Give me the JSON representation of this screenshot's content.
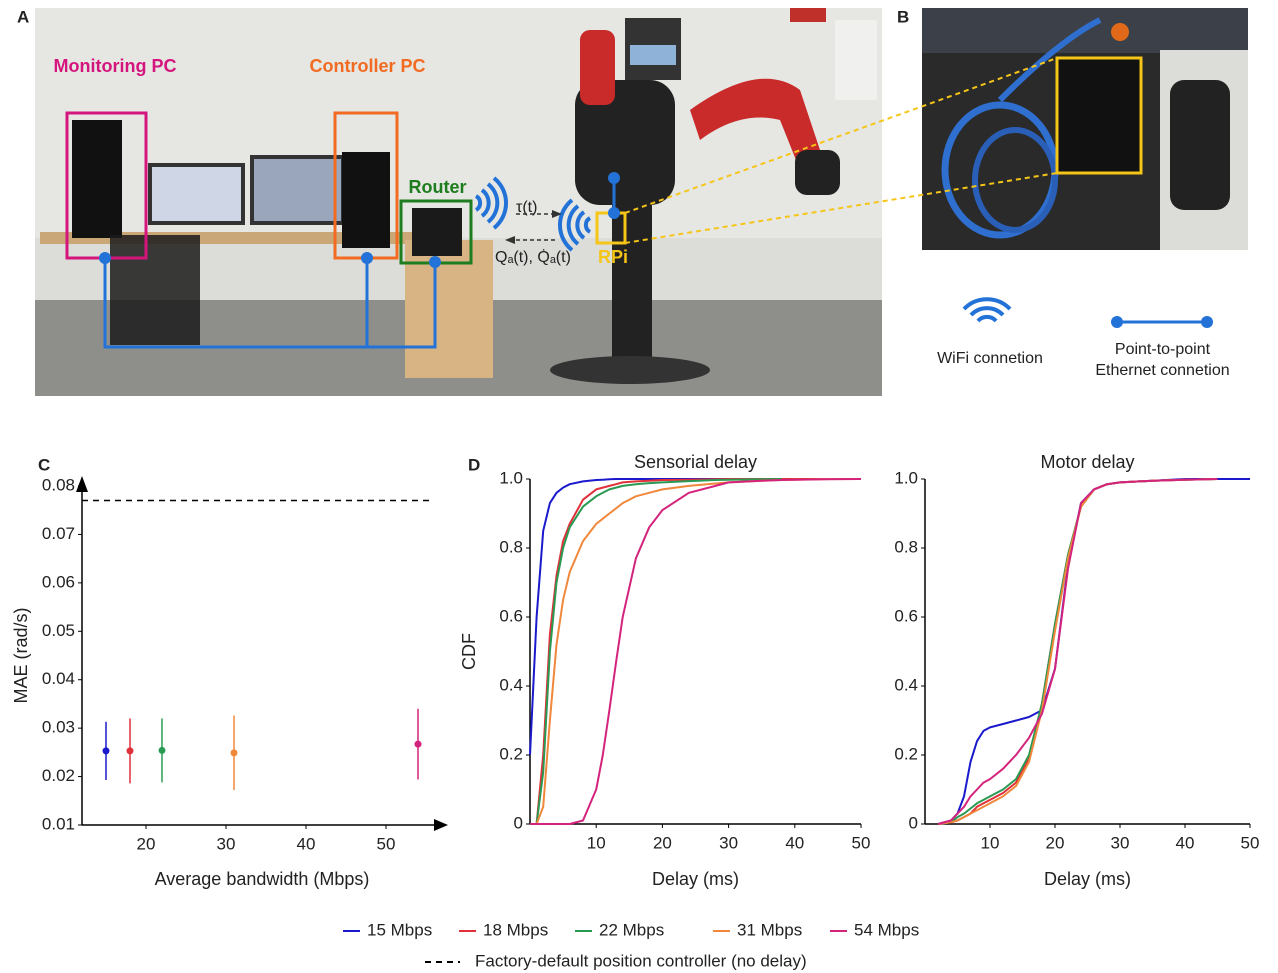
{
  "figure": {
    "panels": [
      "A",
      "B",
      "C",
      "D"
    ],
    "photo_labels": {
      "monitoring": "Monitoring PC",
      "controller": "Controller PC",
      "router": "Router",
      "tau": "τ(t)",
      "q": "Qₐ(t), Q̇ₐ(t)",
      "rpi": "RPi"
    },
    "icon_legend": {
      "wifi": "WiFi connetion",
      "ethernet": "Point-to-point Ethernet connetion"
    }
  },
  "chart_data": [
    {
      "type": "errorbar",
      "xlabel": "Average bandwidth (Mbps)",
      "ylabel": "MAE (rad/s)",
      "x": [
        15,
        18,
        22,
        31,
        54
      ],
      "values": [
        0.0253,
        0.0253,
        0.0254,
        0.0249,
        0.0267
      ],
      "errors": [
        0.006,
        0.0067,
        0.0066,
        0.0077,
        0.0073
      ],
      "colors": [
        "#1a1acc",
        "#e0303a",
        "#2a9a52",
        "#f0883c",
        "#d4237c"
      ],
      "reference_line": {
        "name": "Factory-default position controller (no delay)",
        "value": 0.077,
        "color": "#000000"
      },
      "xlim": [
        12,
        57
      ],
      "ylim": [
        0.01,
        0.08
      ],
      "xticks": [
        20,
        30,
        40,
        50
      ],
      "yticks": [
        0.01,
        0.02,
        0.03,
        0.04,
        0.05,
        0.06,
        0.07,
        0.08
      ]
    },
    {
      "type": "line",
      "title": "Sensorial delay",
      "xlabel": "Delay (ms)",
      "ylabel": "CDF",
      "x": [
        0,
        1,
        2,
        3,
        4,
        5,
        6,
        8,
        10,
        11,
        12,
        13,
        14,
        16,
        18,
        20,
        24,
        28,
        30,
        35,
        38,
        40,
        45,
        50
      ],
      "series": [
        {
          "name": "15 Mbps",
          "color": "#1a1acc",
          "values": [
            0.2,
            0.6,
            0.85,
            0.93,
            0.96,
            0.975,
            0.985,
            0.993,
            0.997,
            0.998,
            0.999,
            1,
            1,
            1,
            1,
            1,
            1,
            1,
            1,
            1,
            1,
            1,
            1,
            1
          ]
        },
        {
          "name": "18 Mbps",
          "color": "#e0303a",
          "values": [
            0,
            0,
            0.2,
            0.55,
            0.72,
            0.82,
            0.87,
            0.94,
            0.97,
            0.975,
            0.98,
            0.985,
            0.99,
            0.993,
            0.995,
            0.997,
            0.998,
            0.999,
            1,
            1,
            1,
            1,
            1,
            1
          ]
        },
        {
          "name": "22 Mbps",
          "color": "#2a9a52",
          "values": [
            0,
            0,
            0.15,
            0.5,
            0.7,
            0.8,
            0.86,
            0.92,
            0.95,
            0.96,
            0.97,
            0.975,
            0.98,
            0.985,
            0.988,
            0.99,
            0.994,
            0.997,
            0.998,
            0.999,
            1,
            null,
            null,
            null
          ]
        },
        {
          "name": "31 Mbps",
          "color": "#f0883c",
          "values": [
            0,
            0,
            0.05,
            0.3,
            0.52,
            0.65,
            0.73,
            0.82,
            0.87,
            0.885,
            0.9,
            0.915,
            0.93,
            0.95,
            0.96,
            0.97,
            0.98,
            0.987,
            0.99,
            0.995,
            0.997,
            0.998,
            1,
            1
          ]
        },
        {
          "name": "54 Mbps",
          "color": "#d4237c",
          "values": [
            0,
            0,
            0,
            0,
            0,
            0,
            0,
            0.01,
            0.1,
            0.2,
            0.33,
            0.47,
            0.6,
            0.77,
            0.86,
            0.91,
            0.96,
            0.98,
            0.99,
            0.995,
            0.997,
            0.998,
            0.999,
            1
          ]
        }
      ],
      "xlim": [
        0,
        50
      ],
      "ylim": [
        0,
        1
      ],
      "xticks": [
        10,
        20,
        30,
        40,
        50
      ],
      "yticks": [
        0,
        0.2,
        0.4,
        0.6,
        0.8,
        {
          "value": 1,
          "label": "1.0"
        }
      ]
    },
    {
      "type": "line",
      "title": "Motor delay",
      "xlabel": "Delay (ms)",
      "x": [
        2,
        4,
        5,
        6,
        7,
        8,
        9,
        10,
        12,
        14,
        16,
        18,
        20,
        22,
        24,
        26,
        28,
        30,
        35,
        40,
        45,
        50
      ],
      "series": [
        {
          "name": "15 Mbps",
          "color": "#1a1acc",
          "values": [
            0,
            0.01,
            0.03,
            0.08,
            0.18,
            0.24,
            0.27,
            0.28,
            0.29,
            0.3,
            0.31,
            0.33,
            0.45,
            0.75,
            0.93,
            0.97,
            0.985,
            0.99,
            0.995,
            1,
            1,
            1
          ]
        },
        {
          "name": "18 Mbps",
          "color": "#e0303a",
          "values": [
            0,
            0.005,
            0.01,
            0.02,
            0.03,
            0.05,
            0.06,
            0.07,
            0.09,
            0.12,
            0.19,
            0.35,
            0.58,
            0.78,
            0.92,
            0.97,
            0.985,
            0.99,
            0.995,
            0.998,
            1,
            null
          ]
        },
        {
          "name": "22 Mbps",
          "color": "#2a9a52",
          "values": [
            0,
            0.005,
            0.02,
            0.03,
            0.045,
            0.06,
            0.07,
            0.08,
            0.1,
            0.13,
            0.2,
            0.35,
            0.58,
            0.78,
            0.92,
            0.97,
            0.985,
            0.99,
            0.995,
            0.998,
            1,
            null
          ]
        },
        {
          "name": "31 Mbps",
          "color": "#f0883c",
          "values": [
            0,
            0.005,
            0.01,
            0.02,
            0.03,
            0.04,
            0.05,
            0.06,
            0.08,
            0.11,
            0.18,
            0.33,
            0.56,
            0.77,
            0.92,
            0.97,
            0.985,
            0.99,
            0.995,
            0.998,
            1,
            null
          ]
        },
        {
          "name": "54 Mbps",
          "color": "#d4237c",
          "values": [
            0,
            0.01,
            0.03,
            0.05,
            0.08,
            0.1,
            0.12,
            0.13,
            0.16,
            0.2,
            0.25,
            0.32,
            0.45,
            0.74,
            0.93,
            0.97,
            0.985,
            0.99,
            0.995,
            0.998,
            1,
            null
          ]
        }
      ],
      "xlim": [
        0,
        50
      ],
      "ylim": [
        0,
        1
      ],
      "xticks": [
        10,
        20,
        30,
        40,
        50
      ],
      "yticks": [
        0,
        0.2,
        0.4,
        0.6,
        0.8,
        {
          "value": 1,
          "label": "1.0"
        }
      ]
    }
  ]
}
